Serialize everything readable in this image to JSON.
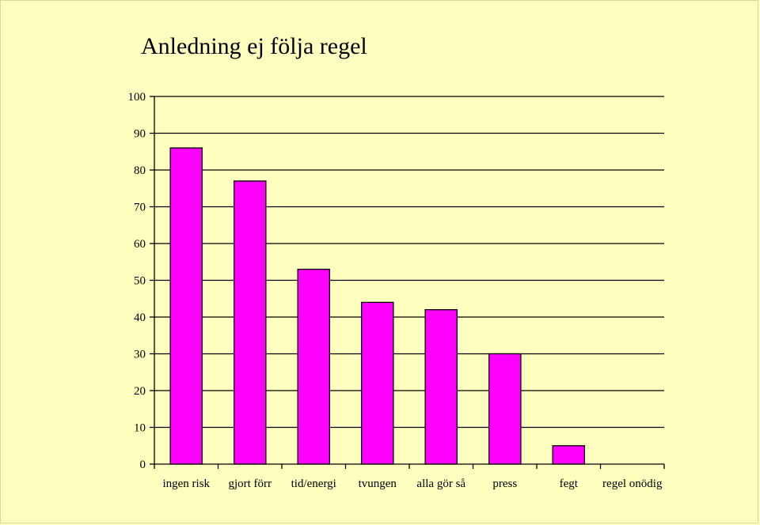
{
  "chart_data": {
    "type": "bar",
    "title": "Anledning ej följa regel",
    "xlabel": "",
    "ylabel": "",
    "categories": [
      "ingen risk",
      "gjort förr",
      "tid/energi",
      "tvungen",
      "alla gör så",
      "press",
      "fegt",
      "regel onödig"
    ],
    "values": [
      86,
      77,
      53,
      44,
      42,
      30,
      5,
      0
    ],
    "ylim": [
      0,
      100
    ],
    "yticks": [
      0,
      10,
      20,
      30,
      40,
      50,
      60,
      70,
      80,
      90,
      100
    ],
    "grid": true,
    "legend": "none"
  },
  "colors": {
    "background": "#ffffc0",
    "bar_fill": "#ff00ff",
    "bar_stroke": "#000000",
    "grid": "#000000"
  }
}
